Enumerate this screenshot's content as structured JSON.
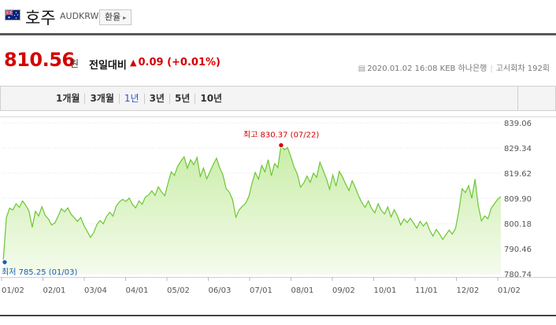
{
  "header": {
    "title": "호주",
    "code": "AUDKRW",
    "exchange_button": "환율",
    "flag_icon": "australia-flag-icon"
  },
  "quote": {
    "price": "810.56",
    "unit": "원",
    "compare_label": "전일대비",
    "change": "0.09",
    "change_pct": "(+0.01%)",
    "direction_icon": "up-triangle-icon",
    "up_color": "#d60000"
  },
  "meta": {
    "timestamp": "2020.01.02 16:08",
    "bank": "KEB 하나은행",
    "notice_round": "고시회차 192회"
  },
  "period_tabs": {
    "items": [
      "1개월",
      "3개월",
      "1년",
      "3년",
      "5년",
      "10년"
    ],
    "active": "1년"
  },
  "chart_data": {
    "type": "area",
    "title": "",
    "y_ticks": [
      "839.06",
      "829.34",
      "819.62",
      "809.90",
      "800.18",
      "790.46",
      "780.74"
    ],
    "ylim": [
      780.74,
      839.06
    ],
    "x_ticks": [
      "01/02",
      "02/01",
      "03/04",
      "04/01",
      "05/02",
      "06/03",
      "07/01",
      "08/01",
      "09/02",
      "10/01",
      "11/01",
      "12/02",
      "01/02"
    ],
    "high_label": "최고 830.37 (07/22)",
    "low_label": "최저 785.25 (01/03)",
    "high": {
      "value": 830.37,
      "date": "07/22"
    },
    "low": {
      "value": 785.25,
      "date": "01/03"
    },
    "line_color": "#6cc633",
    "fill_top": "#c9eda8",
    "fill_bottom": "#f4fbec",
    "high_color": "#d60000",
    "low_color": "#1a5fb4",
    "grid": "horizontal dotted",
    "values": [
      785.25,
      802.5,
      806.1,
      805.4,
      807.8,
      806.4,
      808.9,
      807.2,
      805.0,
      798.7,
      804.9,
      803.1,
      806.7,
      803.3,
      801.9,
      799.6,
      800.4,
      803.0,
      805.9,
      804.7,
      806.2,
      803.8,
      802.4,
      801.0,
      802.5,
      799.4,
      797.2,
      794.8,
      796.6,
      799.8,
      801.3,
      800.1,
      802.9,
      804.5,
      803.0,
      806.9,
      808.6,
      809.5,
      808.7,
      810.0,
      807.5,
      806.2,
      808.9,
      807.6,
      810.4,
      811.2,
      812.8,
      811.0,
      814.3,
      812.4,
      810.9,
      815.7,
      820.1,
      818.7,
      822.3,
      824.2,
      825.9,
      821.5,
      824.8,
      822.9,
      825.7,
      818.3,
      821.6,
      817.4,
      820.2,
      823.0,
      825.4,
      821.7,
      818.9,
      813.6,
      812.2,
      809.3,
      802.6,
      805.4,
      806.8,
      808.0,
      810.5,
      815.7,
      819.9,
      817.3,
      822.6,
      820.1,
      824.8,
      818.6,
      823.3,
      821.8,
      830.37,
      828.6,
      829.5,
      826.1,
      822.0,
      819.3,
      814.2,
      815.8,
      818.5,
      816.1,
      819.6,
      818.0,
      823.8,
      820.7,
      817.6,
      813.4,
      818.9,
      814.6,
      820.3,
      818.2,
      815.3,
      812.9,
      816.7,
      814.0,
      810.8,
      808.2,
      806.4,
      808.9,
      806.0,
      804.3,
      807.8,
      805.2,
      803.9,
      806.6,
      802.7,
      805.5,
      803.1,
      799.6,
      801.9,
      800.5,
      802.2,
      800.3,
      798.4,
      801.0,
      799.2,
      800.7,
      797.5,
      795.3,
      797.9,
      796.2,
      794.0,
      795.8,
      797.6,
      796.1,
      798.4,
      805.0,
      813.6,
      812.1,
      814.8,
      809.9,
      817.3,
      807.0,
      801.2,
      803.1,
      802.0,
      806.0,
      807.8,
      809.5,
      810.56
    ]
  }
}
